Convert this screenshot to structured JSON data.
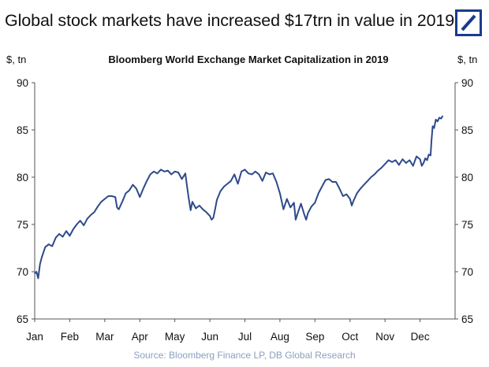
{
  "header": {
    "title": "Global stock markets have increased $17trn in value in 2019",
    "brand_color": "#1a3a8c"
  },
  "source": "Source: Bloomberg Finance LP, DB Global Research",
  "chart_data": {
    "type": "line",
    "title": "Bloomberg World Exchange Market Capitalization in 2019",
    "ylabel_left": "$, tn",
    "ylabel_right": "$, tn",
    "ylim": [
      65,
      90
    ],
    "yticks": [
      65,
      70,
      75,
      80,
      85,
      90
    ],
    "xlim": [
      0,
      12
    ],
    "xticks": [
      {
        "label": "Jan",
        "x": 0
      },
      {
        "label": "Feb",
        "x": 1
      },
      {
        "label": "Mar",
        "x": 2
      },
      {
        "label": "Apr",
        "x": 3
      },
      {
        "label": "May",
        "x": 4
      },
      {
        "label": "Jun",
        "x": 5
      },
      {
        "label": "Jul",
        "x": 6
      },
      {
        "label": "Aug",
        "x": 7
      },
      {
        "label": "Sep",
        "x": 8
      },
      {
        "label": "Oct",
        "x": 9
      },
      {
        "label": "Nov",
        "x": 10
      },
      {
        "label": "Dec",
        "x": 11
      }
    ],
    "grid": false,
    "line_color": "#2e4a8a",
    "series": [
      {
        "name": "",
        "points": [
          [
            0.0,
            69.8
          ],
          [
            0.05,
            70.0
          ],
          [
            0.1,
            69.3
          ],
          [
            0.15,
            70.8
          ],
          [
            0.2,
            71.5
          ],
          [
            0.3,
            72.6
          ],
          [
            0.4,
            72.9
          ],
          [
            0.5,
            72.7
          ],
          [
            0.6,
            73.6
          ],
          [
            0.7,
            74.0
          ],
          [
            0.8,
            73.7
          ],
          [
            0.9,
            74.3
          ],
          [
            1.0,
            73.8
          ],
          [
            1.1,
            74.5
          ],
          [
            1.2,
            75.0
          ],
          [
            1.3,
            75.4
          ],
          [
            1.4,
            74.9
          ],
          [
            1.5,
            75.6
          ],
          [
            1.6,
            76.0
          ],
          [
            1.7,
            76.3
          ],
          [
            1.8,
            76.9
          ],
          [
            1.9,
            77.4
          ],
          [
            2.0,
            77.7
          ],
          [
            2.1,
            78.0
          ],
          [
            2.2,
            78.0
          ],
          [
            2.3,
            77.9
          ],
          [
            2.35,
            76.8
          ],
          [
            2.4,
            76.6
          ],
          [
            2.5,
            77.4
          ],
          [
            2.6,
            78.3
          ],
          [
            2.7,
            78.6
          ],
          [
            2.8,
            79.2
          ],
          [
            2.9,
            78.8
          ],
          [
            3.0,
            77.9
          ],
          [
            3.1,
            78.8
          ],
          [
            3.2,
            79.6
          ],
          [
            3.3,
            80.3
          ],
          [
            3.4,
            80.6
          ],
          [
            3.5,
            80.4
          ],
          [
            3.6,
            80.8
          ],
          [
            3.7,
            80.6
          ],
          [
            3.8,
            80.7
          ],
          [
            3.9,
            80.3
          ],
          [
            4.0,
            80.6
          ],
          [
            4.1,
            80.5
          ],
          [
            4.2,
            79.8
          ],
          [
            4.3,
            80.4
          ],
          [
            4.35,
            79.0
          ],
          [
            4.4,
            77.7
          ],
          [
            4.45,
            76.5
          ],
          [
            4.5,
            77.4
          ],
          [
            4.6,
            76.7
          ],
          [
            4.7,
            77.0
          ],
          [
            4.8,
            76.6
          ],
          [
            4.9,
            76.3
          ],
          [
            5.0,
            75.9
          ],
          [
            5.05,
            75.5
          ],
          [
            5.1,
            75.7
          ],
          [
            5.15,
            76.6
          ],
          [
            5.2,
            77.6
          ],
          [
            5.3,
            78.5
          ],
          [
            5.4,
            79.0
          ],
          [
            5.5,
            79.3
          ],
          [
            5.6,
            79.6
          ],
          [
            5.7,
            80.3
          ],
          [
            5.8,
            79.3
          ],
          [
            5.9,
            80.6
          ],
          [
            6.0,
            80.8
          ],
          [
            6.1,
            80.4
          ],
          [
            6.2,
            80.3
          ],
          [
            6.3,
            80.6
          ],
          [
            6.4,
            80.3
          ],
          [
            6.5,
            79.6
          ],
          [
            6.6,
            80.5
          ],
          [
            6.7,
            80.3
          ],
          [
            6.8,
            80.4
          ],
          [
            6.9,
            79.5
          ],
          [
            7.0,
            78.3
          ],
          [
            7.1,
            76.6
          ],
          [
            7.2,
            77.7
          ],
          [
            7.3,
            76.8
          ],
          [
            7.4,
            77.3
          ],
          [
            7.45,
            75.5
          ],
          [
            7.5,
            76.1
          ],
          [
            7.6,
            77.2
          ],
          [
            7.7,
            76.0
          ],
          [
            7.75,
            75.5
          ],
          [
            7.8,
            76.2
          ],
          [
            7.9,
            76.9
          ],
          [
            8.0,
            77.3
          ],
          [
            8.1,
            78.3
          ],
          [
            8.2,
            79.0
          ],
          [
            8.3,
            79.7
          ],
          [
            8.4,
            79.8
          ],
          [
            8.5,
            79.5
          ],
          [
            8.6,
            79.5
          ],
          [
            8.7,
            78.8
          ],
          [
            8.8,
            78.0
          ],
          [
            8.9,
            78.2
          ],
          [
            9.0,
            77.7
          ],
          [
            9.05,
            77.0
          ],
          [
            9.1,
            77.5
          ],
          [
            9.2,
            78.3
          ],
          [
            9.3,
            78.8
          ],
          [
            9.4,
            79.2
          ],
          [
            9.5,
            79.6
          ],
          [
            9.6,
            80.0
          ],
          [
            9.7,
            80.3
          ],
          [
            9.8,
            80.7
          ],
          [
            9.9,
            81.0
          ],
          [
            10.0,
            81.4
          ],
          [
            10.1,
            81.8
          ],
          [
            10.2,
            81.6
          ],
          [
            10.3,
            81.8
          ],
          [
            10.4,
            81.3
          ],
          [
            10.5,
            81.9
          ],
          [
            10.6,
            81.5
          ],
          [
            10.7,
            81.8
          ],
          [
            10.8,
            81.2
          ],
          [
            10.9,
            82.2
          ],
          [
            11.0,
            81.9
          ],
          [
            11.05,
            81.2
          ],
          [
            11.1,
            81.5
          ],
          [
            11.15,
            82.0
          ],
          [
            11.2,
            81.8
          ],
          [
            11.25,
            82.4
          ],
          [
            11.3,
            82.3
          ],
          [
            11.33,
            84.0
          ],
          [
            11.36,
            85.4
          ],
          [
            11.4,
            85.2
          ],
          [
            11.45,
            86.1
          ],
          [
            11.5,
            85.9
          ],
          [
            11.55,
            86.3
          ],
          [
            11.6,
            86.2
          ],
          [
            11.65,
            86.5
          ]
        ]
      }
    ]
  }
}
